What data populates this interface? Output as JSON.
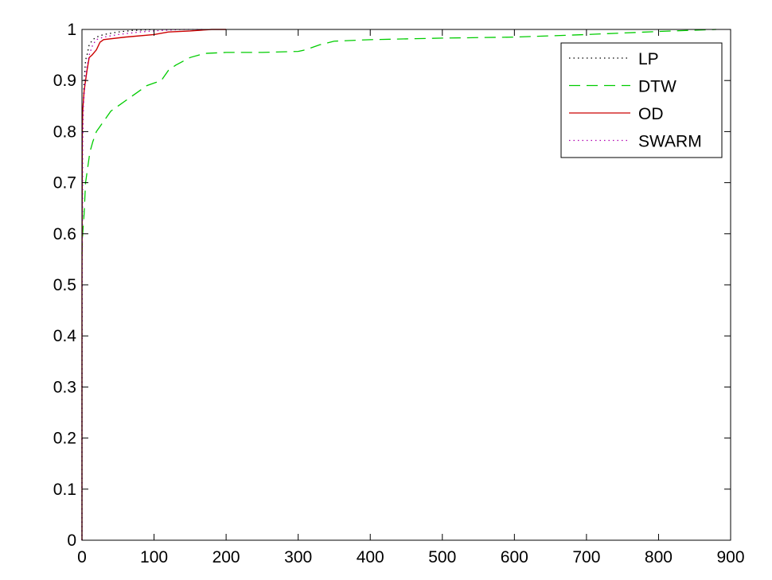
{
  "chart_data": {
    "type": "line",
    "title": "",
    "xlabel": "",
    "ylabel": "",
    "xlim": [
      0,
      900
    ],
    "ylim": [
      0,
      1
    ],
    "grid": false,
    "legend_position": "top-right",
    "x_ticks": [
      "0",
      "100",
      "200",
      "300",
      "400",
      "500",
      "600",
      "700",
      "800",
      "900"
    ],
    "y_ticks": [
      "0",
      "0.1",
      "0.2",
      "0.3",
      "0.4",
      "0.5",
      "0.6",
      "0.7",
      "0.8",
      "0.9",
      "1"
    ],
    "series": [
      {
        "name": "LP",
        "color": "#000000",
        "style": "dotted",
        "x": [
          0,
          0,
          0.5,
          1,
          2,
          3,
          4,
          5,
          7,
          10,
          15,
          20,
          30,
          50,
          70,
          100
        ],
        "y": [
          0,
          0.3,
          0.6,
          0.8,
          0.86,
          0.9,
          0.92,
          0.94,
          0.95,
          0.97,
          0.98,
          0.985,
          0.99,
          0.995,
          0.998,
          1
        ]
      },
      {
        "name": "DTW",
        "color": "#00cc00",
        "style": "dashed",
        "x": [
          0,
          1,
          2,
          3,
          4,
          5,
          7,
          9,
          11,
          13,
          15,
          20,
          25,
          30,
          40,
          50,
          60,
          70,
          80,
          90,
          100,
          110,
          120,
          130,
          150,
          170,
          200,
          250,
          300,
          310,
          330,
          350,
          400,
          500,
          600,
          700,
          800,
          880
        ],
        "y": [
          0.56,
          0.6,
          0.62,
          0.64,
          0.67,
          0.7,
          0.72,
          0.74,
          0.76,
          0.77,
          0.78,
          0.8,
          0.81,
          0.82,
          0.84,
          0.85,
          0.86,
          0.87,
          0.88,
          0.89,
          0.895,
          0.9,
          0.92,
          0.93,
          0.945,
          0.953,
          0.955,
          0.955,
          0.957,
          0.96,
          0.97,
          0.977,
          0.98,
          0.983,
          0.985,
          0.99,
          0.996,
          1
        ]
      },
      {
        "name": "OD",
        "color": "#cc0000",
        "style": "solid",
        "x": [
          0,
          0,
          0.5,
          1,
          2,
          3,
          5,
          7,
          10,
          14,
          20,
          25,
          30,
          60,
          100,
          120,
          150,
          180,
          200
        ],
        "y": [
          0,
          0.5,
          0.8,
          0.84,
          0.86,
          0.88,
          0.9,
          0.92,
          0.945,
          0.95,
          0.96,
          0.975,
          0.98,
          0.985,
          0.99,
          0.995,
          0.997,
          1,
          1
        ]
      },
      {
        "name": "SWARM",
        "color": "#b000b0",
        "style": "dotted",
        "x": [
          0,
          0,
          0.5,
          1,
          2,
          4,
          6,
          10,
          15,
          20,
          30,
          50,
          80,
          110,
          140,
          170
        ],
        "y": [
          0,
          0.3,
          0.6,
          0.78,
          0.85,
          0.89,
          0.92,
          0.95,
          0.97,
          0.98,
          0.985,
          0.99,
          0.995,
          0.998,
          1,
          1
        ]
      }
    ]
  }
}
